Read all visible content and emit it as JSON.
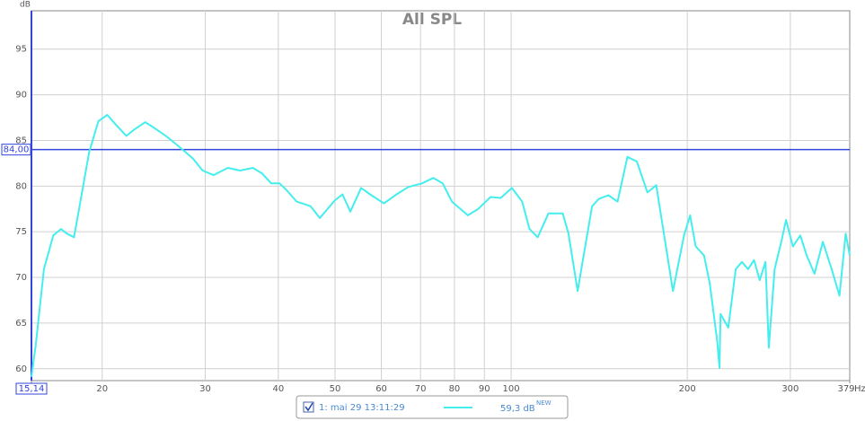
{
  "chart_data": {
    "type": "line",
    "title": "All SPL",
    "y_unit": "dB",
    "x_unit": "Hz",
    "log_x": true,
    "grid": true,
    "xlim": [
      15.14,
      379
    ],
    "ylim": [
      58.7,
      99.2
    ],
    "xticks": [
      {
        "value": 15.14,
        "label": "15,14"
      },
      20,
      30,
      40,
      50,
      60,
      70,
      80,
      90,
      100,
      200,
      300,
      379
    ],
    "yticks": [
      60,
      65,
      70,
      75,
      80,
      85,
      90,
      95
    ],
    "cursor": {
      "value": 84,
      "label": "84,00",
      "color": "#3344dd"
    },
    "series": [
      {
        "name": "1: mai 29 13:11:29",
        "color": "#44eeee",
        "x": [
          15.14,
          15.4,
          15.9,
          16.5,
          17.0,
          17.4,
          17.9,
          18.3,
          19.0,
          19.7,
          20.4,
          21.2,
          22.0,
          22.7,
          23.7,
          24.5,
          25.7,
          27.1,
          28.6,
          29.7,
          31.0,
          32.8,
          34.4,
          36.2,
          37.5,
          38.9,
          40.2,
          41.4,
          43.0,
          45.4,
          47.1,
          49.9,
          51.5,
          53.1,
          55.4,
          57.4,
          60.6,
          63.7,
          66.7,
          70.4,
          73.6,
          76.4,
          79.2,
          84.3,
          87.8,
          92.2,
          96.0,
          100.3,
          104.4,
          107.5,
          111,
          115.8,
          122.5,
          125.3,
          129.9,
          132.6,
          137.5,
          141.2,
          146.6,
          152,
          158,
          164,
          171,
          177,
          189,
          197.4,
          202.2,
          206.7,
          213.6,
          218.4,
          225,
          227,
          228,
          235,
          242,
          248,
          254,
          260,
          266,
          272,
          275.6,
          282,
          290,
          295,
          303,
          312,
          320,
          330,
          341,
          353,
          364,
          373,
          379
        ],
        "values": [
          59.1,
          62.6,
          70.9,
          74.6,
          75.3,
          74.8,
          74.4,
          77.8,
          83.7,
          87.1,
          87.8,
          86.6,
          85.5,
          86.2,
          87.0,
          86.4,
          85.5,
          84.3,
          83.0,
          81.7,
          81.2,
          82.0,
          81.7,
          82.0,
          81.4,
          80.3,
          80.3,
          79.5,
          78.3,
          77.8,
          76.5,
          78.4,
          79.1,
          77.2,
          79.8,
          79.1,
          78.1,
          79.1,
          79.9,
          80.3,
          80.9,
          80.3,
          78.3,
          76.8,
          77.5,
          78.8,
          78.7,
          79.8,
          78.3,
          75.3,
          74.4,
          77.0,
          77.0,
          74.8,
          68.5,
          71.9,
          77.8,
          78.6,
          79.0,
          78.3,
          83.2,
          82.7,
          79.3,
          80.1,
          68.5,
          74.6,
          76.8,
          73.4,
          72.4,
          69.4,
          63.0,
          60.1,
          66.0,
          64.5,
          70.9,
          71.7,
          70.9,
          71.9,
          69.7,
          71.7,
          62.3,
          70.9,
          74.1,
          76.3,
          73.4,
          74.6,
          72.4,
          70.4,
          73.9,
          70.9,
          68.0,
          74.8,
          72.4
        ],
        "level": {
          "value": 59.3,
          "label": "59,3 dB",
          "tag": "NEW"
        }
      }
    ]
  }
}
